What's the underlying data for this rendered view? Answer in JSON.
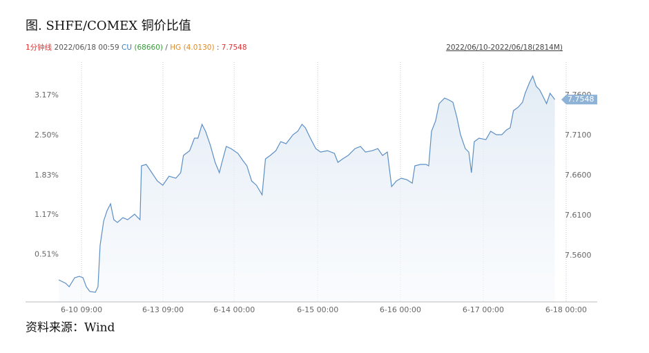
{
  "title": "图. SHFE/COMEX 铜价比值",
  "source": "资料来源：Wind",
  "chart_data": {
    "type": "line",
    "header_parts": [
      {
        "text": "1分钟线",
        "color": "#e03030"
      },
      {
        "text": "2022/06/18 00:59",
        "color": "#555555"
      },
      {
        "text": "CU",
        "color": "#3a7ec0"
      },
      {
        "text": "(68660)",
        "color": "#3a9a3a"
      },
      {
        "text": "/",
        "color": "#555555"
      },
      {
        "text": "HG",
        "color": "#e08a20"
      },
      {
        "text": "(4.0130)",
        "color": "#e08a20"
      },
      {
        "text": ":",
        "color": "#555555"
      },
      {
        "text": "7.7548",
        "color": "#e03030"
      }
    ],
    "range_label": "2022/06/10-2022/06/18(2814M)",
    "xlim": [
      -188,
      3048
    ],
    "xticks": [
      {
        "value": 129,
        "label": "6-10 09:00"
      },
      {
        "value": 590,
        "label": "6-13 09:00"
      },
      {
        "value": 993,
        "label": "6-14 00:00"
      },
      {
        "value": 1466,
        "label": "6-15 00:00"
      },
      {
        "value": 1934,
        "label": "6-16 00:00"
      },
      {
        "value": 2403,
        "label": "6-17 00:00"
      },
      {
        "value": 2872,
        "label": "6-18 00:00"
      }
    ],
    "ylim": [
      7.5023,
      7.8014
    ],
    "yticks": [
      {
        "value": 7.76,
        "label": "7.7600"
      },
      {
        "value": 7.71,
        "label": "7.7100"
      },
      {
        "value": 7.66,
        "label": "7.6600"
      },
      {
        "value": 7.61,
        "label": "7.6100"
      },
      {
        "value": 7.56,
        "label": "7.5600"
      }
    ],
    "y2lim": [
      -0.283,
      3.724
    ],
    "y2ticks": [
      {
        "value": 3.17,
        "label": "3.17%"
      },
      {
        "value": 2.5,
        "label": "2.50%"
      },
      {
        "value": 1.83,
        "label": "1.83%"
      },
      {
        "value": 1.17,
        "label": "1.17%"
      },
      {
        "value": 0.51,
        "label": "0.51%"
      }
    ],
    "grid": "vertical",
    "series": [
      {
        "color": "#5b8ec4",
        "x": [
          0,
          39,
          59,
          90,
          117,
          137,
          156,
          176,
          207,
          222,
          234,
          254,
          273,
          293,
          312,
          332,
          363,
          390,
          429,
          460,
          468,
          495,
          527,
          558,
          589,
          624,
          663,
          690,
          706,
          741,
          768,
          788,
          811,
          831,
          858,
          885,
          909,
          924,
          948,
          975,
          1014,
          1041,
          1065,
          1092,
          1119,
          1151,
          1170,
          1197,
          1229,
          1256,
          1287,
          1326,
          1353,
          1377,
          1396,
          1424,
          1455,
          1482,
          1521,
          1560,
          1580,
          1607,
          1638,
          1677,
          1708,
          1736,
          1775,
          1806,
          1833,
          1860,
          1884,
          1911,
          1938,
          1970,
          2001,
          2016,
          2048,
          2079,
          2094,
          2110,
          2133,
          2153,
          2184,
          2211,
          2231,
          2254,
          2274,
          2301,
          2321,
          2336,
          2352,
          2379,
          2418,
          2445,
          2477,
          2508,
          2535,
          2555,
          2574,
          2601,
          2625,
          2640,
          2664,
          2683,
          2703,
          2722,
          2742,
          2761,
          2781,
          2808
        ],
        "values": [
          7.5298,
          7.5255,
          7.5212,
          7.5324,
          7.5342,
          7.5324,
          7.5212,
          7.5152,
          7.5143,
          7.5212,
          7.5729,
          7.6031,
          7.616,
          7.6247,
          7.6048,
          7.6014,
          7.6074,
          7.6048,
          7.6117,
          7.6048,
          7.6721,
          7.6738,
          7.6635,
          7.6531,
          7.6479,
          7.6591,
          7.6566,
          7.6635,
          7.685,
          7.691,
          7.7066,
          7.7066,
          7.7238,
          7.7152,
          7.6979,
          7.6764,
          7.6635,
          7.6764,
          7.6962,
          7.6936,
          7.6876,
          7.679,
          7.6721,
          7.6531,
          7.6479,
          7.6359,
          7.6807,
          7.685,
          7.691,
          7.7022,
          7.6997,
          7.7109,
          7.7152,
          7.7238,
          7.7195,
          7.7066,
          7.6936,
          7.6893,
          7.691,
          7.6876,
          7.6764,
          7.6807,
          7.685,
          7.6936,
          7.6962,
          7.6893,
          7.691,
          7.6936,
          7.685,
          7.6893,
          7.6462,
          7.6531,
          7.6566,
          7.6548,
          7.6505,
          7.6721,
          7.6738,
          7.6738,
          7.6721,
          7.7152,
          7.7281,
          7.7497,
          7.7566,
          7.754,
          7.7514,
          7.7324,
          7.7109,
          7.6936,
          7.6893,
          7.6635,
          7.7022,
          7.7066,
          7.7048,
          7.7152,
          7.7109,
          7.7109,
          7.7169,
          7.7195,
          7.741,
          7.7453,
          7.7514,
          7.7626,
          7.7755,
          7.7841,
          7.7712,
          7.7669,
          7.7583,
          7.7497,
          7.7626,
          7.7548
        ]
      }
    ]
  }
}
